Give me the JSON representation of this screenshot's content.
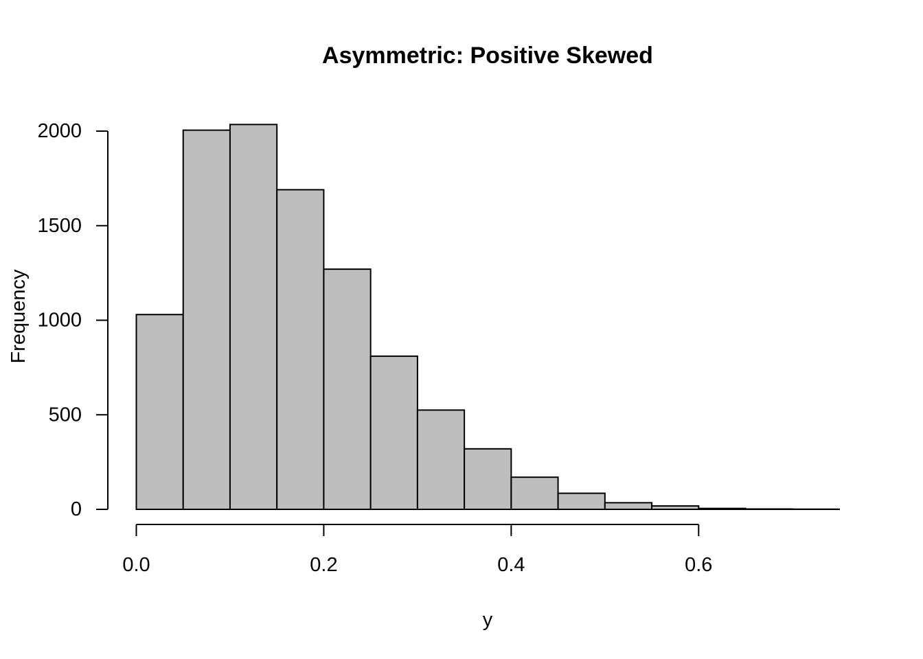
{
  "chart_data": {
    "type": "bar",
    "title": "Asymmetric: Positive Skewed",
    "xlabel": "y",
    "ylabel": "Frequency",
    "bins": [
      {
        "start": 0.0,
        "end": 0.05,
        "count": 1030
      },
      {
        "start": 0.05,
        "end": 0.1,
        "count": 2005
      },
      {
        "start": 0.1,
        "end": 0.15,
        "count": 2035
      },
      {
        "start": 0.15,
        "end": 0.2,
        "count": 1690
      },
      {
        "start": 0.2,
        "end": 0.25,
        "count": 1270
      },
      {
        "start": 0.25,
        "end": 0.3,
        "count": 810
      },
      {
        "start": 0.3,
        "end": 0.35,
        "count": 525
      },
      {
        "start": 0.35,
        "end": 0.4,
        "count": 320
      },
      {
        "start": 0.4,
        "end": 0.45,
        "count": 170
      },
      {
        "start": 0.45,
        "end": 0.5,
        "count": 85
      },
      {
        "start": 0.5,
        "end": 0.55,
        "count": 35
      },
      {
        "start": 0.55,
        "end": 0.6,
        "count": 18
      },
      {
        "start": 0.6,
        "end": 0.65,
        "count": 5
      },
      {
        "start": 0.65,
        "end": 0.7,
        "count": 2
      },
      {
        "start": 0.7,
        "end": 0.75,
        "count": 1
      }
    ],
    "xlim": [
      0.0,
      0.75
    ],
    "ylim": [
      0,
      2000
    ],
    "x_ticks": [
      0.0,
      0.2,
      0.4,
      0.6
    ],
    "x_tick_labels": [
      "0.0",
      "0.2",
      "0.4",
      "0.6"
    ],
    "y_ticks": [
      0,
      500,
      1000,
      1500,
      2000
    ],
    "y_tick_labels": [
      "0",
      "500",
      "1000",
      "1500",
      "2000"
    ],
    "grid": false,
    "bar_color": "#bebebe",
    "edge_color": "#000000"
  }
}
